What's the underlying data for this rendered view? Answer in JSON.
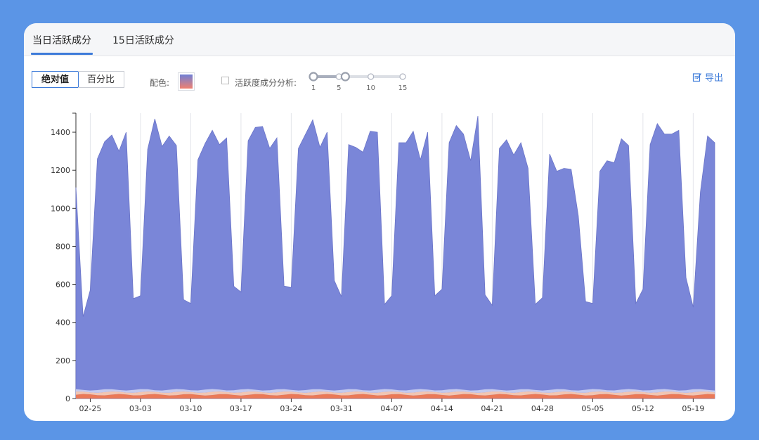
{
  "tabs": [
    {
      "label": "当日活跃成分",
      "active": true
    },
    {
      "label": "15日活跃成分",
      "active": false
    }
  ],
  "mode": {
    "absolute": "绝对值",
    "percent": "百分比",
    "selected": "absolute"
  },
  "palette_label": "配色:",
  "palette_colors": [
    "#6f7fd6",
    "#f08070"
  ],
  "activity_checkbox": {
    "label": "活跃度成分分析:",
    "checked": false
  },
  "range_slider": {
    "ticks": [
      "1",
      "5",
      "10",
      "15"
    ],
    "tick_values": [
      1,
      5,
      10,
      15
    ],
    "min": 1,
    "max": 15,
    "handles": [
      1,
      6
    ]
  },
  "export_label": "导出",
  "chart_data": {
    "type": "area",
    "y_ticks": [
      "0",
      "200",
      "400",
      "600",
      "800",
      "1000",
      "1200",
      "1400"
    ],
    "ylim": [
      0,
      1500
    ],
    "x_labels": [
      "02-25",
      "03-03",
      "03-10",
      "03-17",
      "03-24",
      "03-31",
      "04-07",
      "04-14",
      "04-21",
      "04-28",
      "05-05",
      "05-12",
      "05-19"
    ],
    "series_color": "#7a86d8",
    "base_band_colors": [
      "#f07850",
      "#f8c8b0",
      "#c8cdf0"
    ],
    "total": [
      1110,
      430,
      570,
      1260,
      1350,
      1385,
      1300,
      1400,
      525,
      540,
      1310,
      1470,
      1325,
      1380,
      1330,
      520,
      500,
      1255,
      1340,
      1410,
      1335,
      1370,
      590,
      560,
      1355,
      1425,
      1430,
      1315,
      1370,
      590,
      585,
      1315,
      1390,
      1465,
      1320,
      1400,
      620,
      535,
      1335,
      1320,
      1295,
      1405,
      1400,
      495,
      540,
      1345,
      1345,
      1405,
      1255,
      1400,
      540,
      575,
      1345,
      1435,
      1390,
      1250,
      1485,
      545,
      490,
      1315,
      1360,
      1280,
      1345,
      1210,
      495,
      530,
      1285,
      1195,
      1210,
      1205,
      960,
      510,
      500,
      1195,
      1250,
      1240,
      1365,
      1330,
      500,
      575,
      1335,
      1445,
      1390,
      1390,
      1410,
      635,
      480,
      1085,
      1380,
      1345
    ]
  }
}
